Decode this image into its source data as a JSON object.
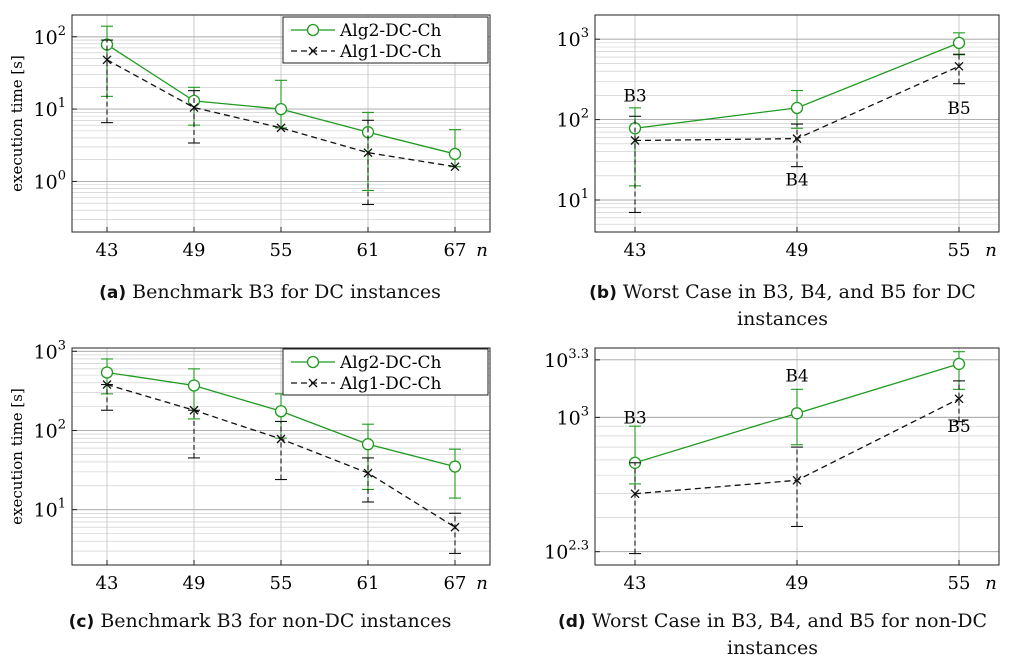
{
  "colors": {
    "alg2": "#1f9b1f",
    "alg1": "#111111",
    "grid": "#c8c8c8"
  },
  "captions": [
    {
      "tag": "(a)",
      "text": "Benchmark B3 for DC instances"
    },
    {
      "tag": "(b)",
      "text": "Worst Case in B3, B4, and B5 for DC",
      "text2": "instances"
    },
    {
      "tag": "(c)",
      "text": "Benchmark B3 for non-DC instances"
    },
    {
      "tag": "(d)",
      "text": "Worst Case in B3, B4, and B5 for non-DC",
      "text2": "instances"
    }
  ],
  "chart_data": [
    {
      "type": "line",
      "ylabel": "execution time [s]",
      "xlabel": "n",
      "yscale": "log",
      "ylim": [
        0.2,
        200
      ],
      "x": [
        43,
        49,
        55,
        61,
        67
      ],
      "xticks": [
        "43",
        "49",
        "55",
        "61",
        "67"
      ],
      "yticks": [
        {
          "value": 1,
          "base": "10",
          "exp": "0"
        },
        {
          "value": 10,
          "base": "10",
          "exp": "1"
        },
        {
          "value": 100,
          "base": "10",
          "exp": "2"
        }
      ],
      "legend": "top-right",
      "grid": true,
      "series": [
        {
          "name": "Alg2-DC-Ch",
          "marker": "circle",
          "dashed": false,
          "values": [
            78,
            13,
            10,
            4.8,
            2.4
          ],
          "err_low": [
            15,
            6,
            5.5,
            0.75,
            1.6
          ],
          "err_high": [
            140,
            20,
            25,
            9,
            5.2
          ]
        },
        {
          "name": "Alg1-DC-Ch",
          "marker": "x",
          "dashed": true,
          "values": [
            48,
            10.5,
            5.5,
            2.5,
            1.6
          ],
          "err_low": [
            6.5,
            3.4,
            5.5,
            0.48,
            1.6
          ],
          "err_high": [
            90,
            18,
            5.5,
            7,
            1.6
          ]
        }
      ]
    },
    {
      "type": "line",
      "ylabel": "",
      "xlabel": "n",
      "yscale": "log",
      "ylim": [
        4,
        2000
      ],
      "x": [
        43,
        49,
        55
      ],
      "xticks": [
        "43",
        "49",
        "55"
      ],
      "yticks": [
        {
          "value": 10,
          "base": "10",
          "exp": "1"
        },
        {
          "value": 100,
          "base": "10",
          "exp": "2"
        },
        {
          "value": 1000,
          "base": "10",
          "exp": "3"
        }
      ],
      "grid": true,
      "series": [
        {
          "name": "Alg2-DC-Ch",
          "marker": "circle",
          "dashed": false,
          "values": [
            78,
            140,
            900
          ],
          "err_low": [
            15,
            78,
            640
          ],
          "err_high": [
            140,
            230,
            1200
          ]
        },
        {
          "name": "Alg1-DC-Ch",
          "marker": "x",
          "dashed": true,
          "values": [
            55,
            58,
            460
          ],
          "err_low": [
            7,
            26,
            280
          ],
          "err_high": [
            110,
            88,
            650
          ]
        }
      ],
      "annotations": [
        {
          "text": "B3",
          "x": 43,
          "y": 200
        },
        {
          "text": "B4",
          "x": 49,
          "y": 18
        },
        {
          "text": "B5",
          "x": 55,
          "y": 140
        }
      ]
    },
    {
      "type": "line",
      "ylabel": "execution time [s]",
      "xlabel": "n",
      "yscale": "log",
      "ylim": [
        2,
        1100
      ],
      "x": [
        43,
        49,
        55,
        61,
        67
      ],
      "xticks": [
        "43",
        "49",
        "55",
        "61",
        "67"
      ],
      "yticks": [
        {
          "value": 10,
          "base": "10",
          "exp": "1"
        },
        {
          "value": 100,
          "base": "10",
          "exp": "2"
        },
        {
          "value": 1000,
          "base": "10",
          "exp": "3"
        }
      ],
      "legend": "top-right",
      "grid": true,
      "series": [
        {
          "name": "Alg2-DC-Ch",
          "marker": "circle",
          "dashed": false,
          "values": [
            540,
            370,
            175,
            67,
            35
          ],
          "err_low": [
            290,
            140,
            80,
            18,
            14
          ],
          "err_high": [
            800,
            600,
            290,
            120,
            58
          ]
        },
        {
          "name": "Alg1-DC-Ch",
          "marker": "x",
          "dashed": true,
          "values": [
            380,
            180,
            78,
            29,
            6
          ],
          "err_low": [
            180,
            45,
            24,
            12.5,
            2.8
          ],
          "err_high": [
            380,
            180,
            130,
            45,
            9
          ]
        }
      ]
    },
    {
      "type": "line",
      "ylabel": "",
      "xlabel": "n",
      "yscale": "log",
      "ylim": [
        170,
        2300
      ],
      "x": [
        43,
        49,
        55
      ],
      "xticks": [
        "43",
        "49",
        "55"
      ],
      "yticks": [
        {
          "value": 199.5,
          "base": "10",
          "exp": "2.3"
        },
        {
          "value": 1000,
          "base": "10",
          "exp": "3"
        },
        {
          "value": 1995,
          "base": "10",
          "exp": "3.3"
        }
      ],
      "grid": true,
      "series": [
        {
          "name": "Alg2-DC-Ch",
          "marker": "circle",
          "dashed": false,
          "values": [
            580,
            1050,
            1900
          ],
          "err_low": [
            450,
            720,
            1400
          ],
          "err_high": [
            900,
            1400,
            2200
          ]
        },
        {
          "name": "Alg1-DC-Ch",
          "marker": "x",
          "dashed": true,
          "values": [
            400,
            470,
            1250
          ],
          "err_low": [
            195,
            270,
            950
          ],
          "err_high": [
            580,
            700,
            1550
          ]
        }
      ],
      "annotations": [
        {
          "text": "B3",
          "x": 43,
          "y": 1000
        },
        {
          "text": "B4",
          "x": 49,
          "y": 1650
        },
        {
          "text": "B5",
          "x": 55,
          "y": 900
        }
      ]
    }
  ]
}
